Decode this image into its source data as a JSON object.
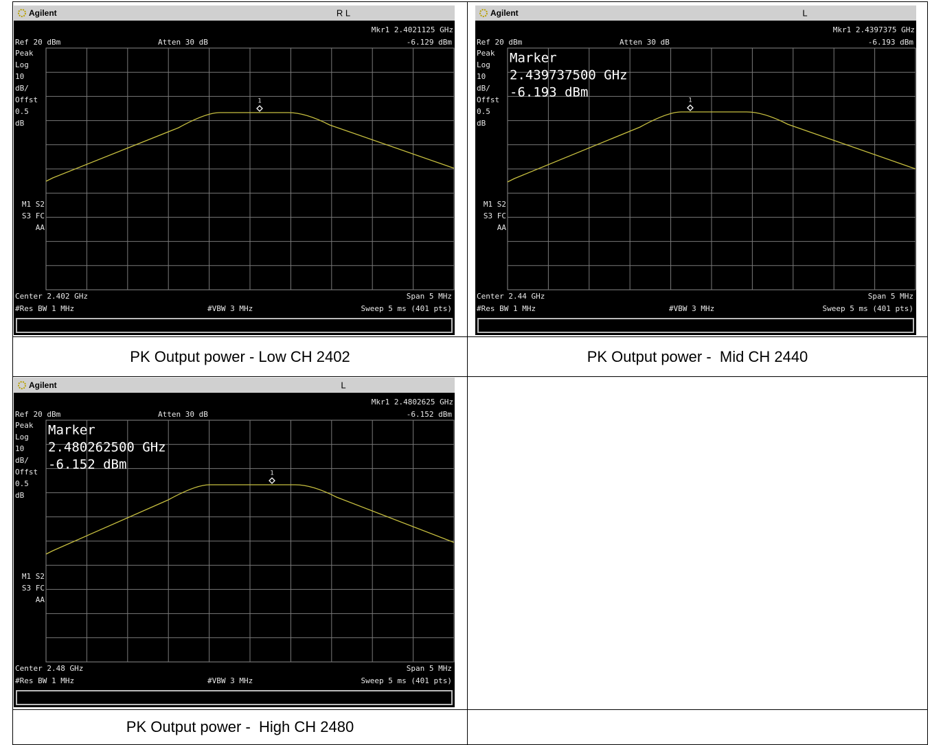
{
  "panels": [
    {
      "brand": "Agilent",
      "status": "R L",
      "mkr": "Mkr1  2.4021125 GHz",
      "mkr_level": "-6.129 dBm",
      "ref": "Ref 20 dBm",
      "atten": "Atten 30 dB",
      "side_labels": [
        "Peak",
        "Log",
        "10",
        "dB/",
        "Offst",
        "0.5",
        "dB"
      ],
      "mode_labels": [
        "M1  S2",
        "S3  FC",
        "AA"
      ],
      "marker_number": "1",
      "center": "Center 2.402 GHz",
      "span": "Span 5 MHz",
      "res_bw": "#Res BW 1 MHz",
      "vbw": "#VBW 3 MHz",
      "sweep": "Sweep 5 ms (401 pts)"
    },
    {
      "brand": "Agilent",
      "status": "L",
      "mkr": "Mkr1  2.4397375 GHz",
      "mkr_level": "-6.193 dBm",
      "ref": "Ref 20 dBm",
      "atten": "Atten 30 dB",
      "side_labels": [
        "Peak",
        "Log",
        "10",
        "dB/",
        "Offst",
        "0.5",
        "dB"
      ],
      "mode_labels": [
        "M1  S2",
        "S3  FC",
        "AA"
      ],
      "marker_number": "1",
      "marker_box": [
        "Marker",
        "2.439737500 GHz",
        "-6.193 dBm"
      ],
      "center": "Center 2.44 GHz",
      "span": "Span 5 MHz",
      "res_bw": "#Res BW 1 MHz",
      "vbw": "#VBW 3 MHz",
      "sweep": "Sweep 5 ms (401 pts)"
    },
    {
      "brand": "Agilent",
      "status": "L",
      "mkr": "Mkr1  2.4802625 GHz",
      "mkr_level": "-6.152 dBm",
      "ref": "Ref 20 dBm",
      "atten": "Atten 30 dB",
      "side_labels": [
        "Peak",
        "Log",
        "10",
        "dB/",
        "Offst",
        "0.5",
        "dB"
      ],
      "mode_labels": [
        "M1  S2",
        "S3  FC",
        "AA"
      ],
      "marker_number": "1",
      "marker_box": [
        "Marker",
        "2.480262500 GHz",
        "-6.152 dBm"
      ],
      "center": "Center 2.48 GHz",
      "span": "Span 5 MHz",
      "res_bw": "#Res BW 1 MHz",
      "vbw": "#VBW 3 MHz",
      "sweep": "Sweep 5 ms (401 pts)"
    }
  ],
  "captions": [
    "PK Output power - Low CH 2402",
    "PK Output power -  Mid CH 2440",
    "PK Output power -  High CH 2480"
  ]
}
